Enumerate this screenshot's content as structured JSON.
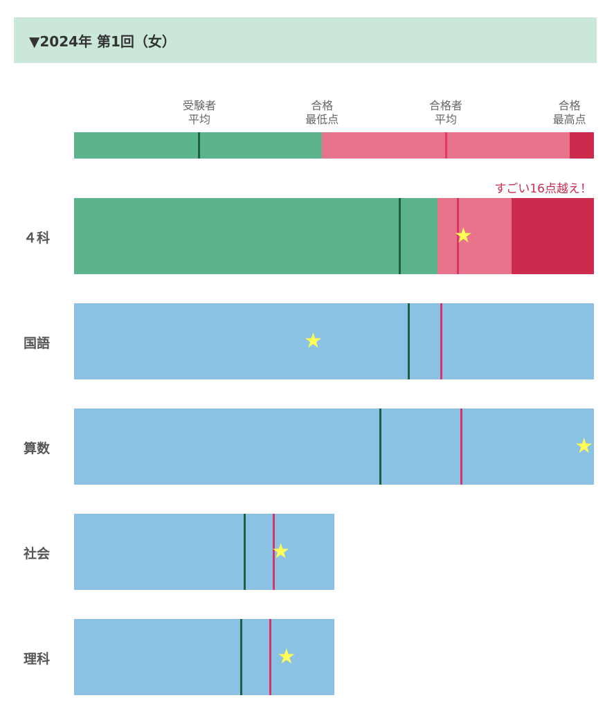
{
  "header": {
    "title": "▼2024年 第1回（女）"
  },
  "legend": {
    "labels": [
      {
        "line1": "受験者",
        "line2": "平均",
        "pos": 0.241
      },
      {
        "line1": "合格",
        "line2": "最低点",
        "pos": 0.477
      },
      {
        "line1": "合格者",
        "line2": "平均",
        "pos": 0.715
      },
      {
        "line1": "合格",
        "line2": "最高点",
        "pos": 0.953
      }
    ],
    "segments": [
      {
        "from": 0,
        "to": 0.477,
        "color": "#5bb48e"
      },
      {
        "from": 0.477,
        "to": 0.954,
        "color": "#e8748c"
      },
      {
        "from": 0.954,
        "to": 1,
        "color": "#cc2b4e"
      }
    ],
    "lines": [
      {
        "pos": 0.241,
        "color": "#1f5e40"
      },
      {
        "pos": 0.716,
        "color": "#e23a60"
      }
    ]
  },
  "annotation": "すごい16点越え！",
  "colors": {
    "blue": "#8bc1e2",
    "dark_line": "#1f5e40",
    "pink_line": "#d8336a",
    "star": "#ffff55"
  },
  "chart_data": {
    "type": "bar",
    "rows": [
      {
        "label": "４科",
        "scale": 1.0,
        "segments": [
          {
            "from": 0,
            "to": 0.699,
            "color": "#5bb48e"
          },
          {
            "from": 0.699,
            "to": 0.842,
            "color": "#e8748c"
          },
          {
            "from": 0.842,
            "to": 1,
            "color": "#cc2b4e"
          }
        ],
        "examinee_avg": 0.627,
        "passer_avg": 0.738,
        "score": 0.749
      },
      {
        "label": "国語",
        "scale": 1.0,
        "segments": [
          {
            "from": 0,
            "to": 1,
            "color": "#8bc1e2"
          }
        ],
        "examinee_avg": 0.644,
        "passer_avg": 0.707,
        "score": 0.46
      },
      {
        "label": "算数",
        "scale": 1.0,
        "segments": [
          {
            "from": 0,
            "to": 1,
            "color": "#8bc1e2"
          }
        ],
        "examinee_avg": 0.589,
        "passer_avg": 0.745,
        "score": 0.981
      },
      {
        "label": "社会",
        "scale": 0.5,
        "segments": [
          {
            "from": 0,
            "to": 1,
            "color": "#8bc1e2"
          }
        ],
        "examinee_avg": 0.657,
        "passer_avg": 0.769,
        "score": 0.795
      },
      {
        "label": "理科",
        "scale": 0.5,
        "segments": [
          {
            "from": 0,
            "to": 1,
            "color": "#8bc1e2"
          }
        ],
        "examinee_avg": 0.644,
        "passer_avg": 0.755,
        "score": 0.817
      }
    ]
  }
}
